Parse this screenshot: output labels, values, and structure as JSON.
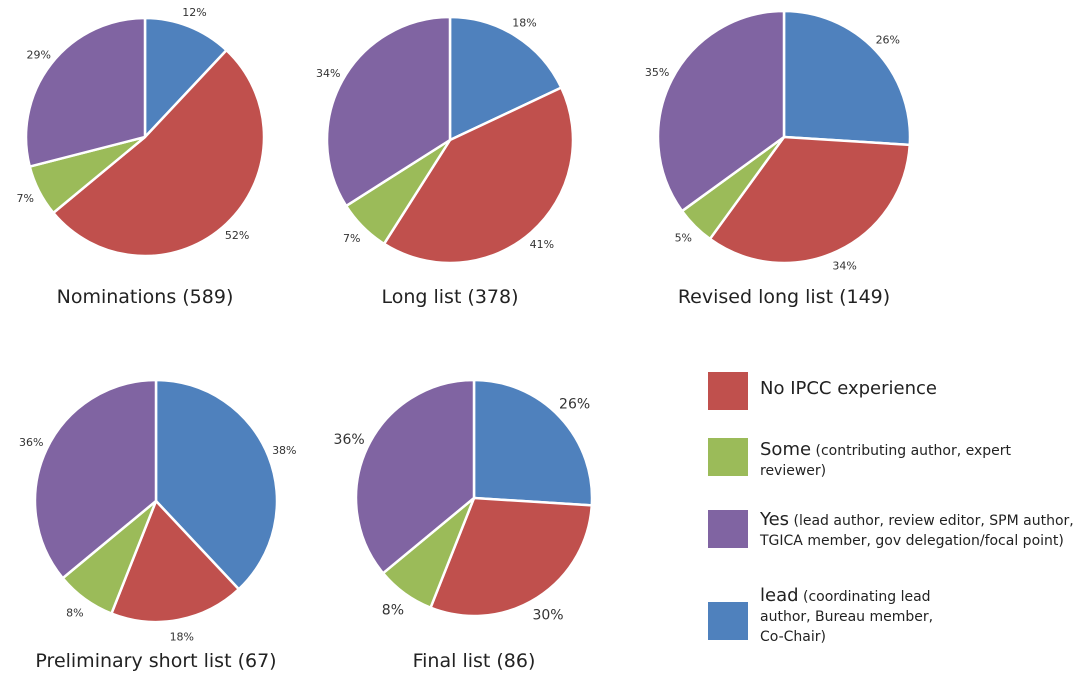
{
  "colors": {
    "no": "#C0504D",
    "some": "#9BBB59",
    "yes": "#8064A2",
    "lead": "#4F81BD"
  },
  "chart_data": [
    {
      "type": "pie",
      "title": "Nominations (589)",
      "slices": [
        {
          "key": "lead",
          "value": 12,
          "label": "12%"
        },
        {
          "key": "no",
          "value": 52,
          "label": "52%"
        },
        {
          "key": "some",
          "value": 7,
          "label": "7%"
        },
        {
          "key": "yes",
          "value": 29,
          "label": "29%"
        }
      ]
    },
    {
      "type": "pie",
      "title": "Long list (378)",
      "slices": [
        {
          "key": "lead",
          "value": 18,
          "label": "18%"
        },
        {
          "key": "no",
          "value": 41,
          "label": "41%"
        },
        {
          "key": "some",
          "value": 7,
          "label": "7%"
        },
        {
          "key": "yes",
          "value": 34,
          "label": "34%"
        }
      ]
    },
    {
      "type": "pie",
      "title": "Revised long list (149)",
      "slices": [
        {
          "key": "lead",
          "value": 26,
          "label": "26%"
        },
        {
          "key": "no",
          "value": 34,
          "label": "34%"
        },
        {
          "key": "some",
          "value": 5,
          "label": "5%"
        },
        {
          "key": "yes",
          "value": 35,
          "label": "35%"
        }
      ]
    },
    {
      "type": "pie",
      "title": "Preliminary short list (67)",
      "slices": [
        {
          "key": "lead",
          "value": 38,
          "label": "38%"
        },
        {
          "key": "no",
          "value": 18,
          "label": "18%"
        },
        {
          "key": "some",
          "value": 8,
          "label": "8%"
        },
        {
          "key": "yes",
          "value": 36,
          "label": "36%"
        }
      ]
    },
    {
      "type": "pie",
      "title": "Final list (86)",
      "slices": [
        {
          "key": "lead",
          "value": 26,
          "label": "26%"
        },
        {
          "key": "no",
          "value": 30,
          "label": "30%"
        },
        {
          "key": "some",
          "value": 8,
          "label": "8%"
        },
        {
          "key": "yes",
          "value": 36,
          "label": "36%"
        }
      ]
    }
  ],
  "legend": {
    "items": [
      {
        "key": "no",
        "main": "No IPCC experience",
        "sub": ""
      },
      {
        "key": "some",
        "main": "Some",
        "sub": " (contributing author, expert reviewer)"
      },
      {
        "key": "yes",
        "main": "Yes",
        "sub": " (lead author, review editor, SPM author, TGICA member, gov delegation/focal point)"
      },
      {
        "key": "lead",
        "main": "lead",
        "sub": " (coordinating lead author, Bureau member, Co-Chair)"
      }
    ]
  }
}
